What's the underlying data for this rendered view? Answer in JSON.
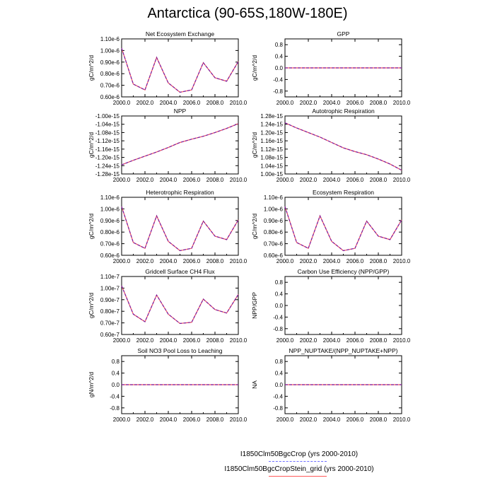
{
  "title": "Antarctica (90-65S,180W-180E)",
  "legend": [
    {
      "label": "I1850Clm50BgcCrop (yrs 2000-2010)",
      "color": "#6f6fff",
      "dash": true
    },
    {
      "label": "I1850Clm50BgcCropStein_grid (yrs 2000-2010)",
      "color": "#ff5a5a",
      "dash": false
    }
  ],
  "colors": {
    "series_overlap": "#7a1fa2",
    "zero_line": "#7a1fa2"
  },
  "chart_data": [
    {
      "type": "line",
      "title": "Net Ecosystem Exchange",
      "ylabel": "gC/m^2/d",
      "x": [
        2000,
        2001,
        2002,
        2003,
        2004,
        2005,
        2006,
        2007,
        2008,
        2009,
        2010
      ],
      "series": [
        {
          "values": [
            1.02e-06,
            7.1e-07,
            6.6e-07,
            9.4e-07,
            7.2e-07,
            6.4e-07,
            6.6e-07,
            8.95e-07,
            7.65e-07,
            7.35e-07,
            9.05e-07
          ]
        }
      ],
      "xlim": [
        2000,
        2010
      ],
      "ylim": [
        6e-07,
        1.1e-06
      ],
      "xticks": [
        2000,
        2002,
        2004,
        2006,
        2008,
        2010
      ],
      "xtick_labels": [
        "2000.0",
        "2002.0",
        "2004.0",
        "2006.0",
        "2008.0",
        "2010.0"
      ],
      "yticks": [
        6e-07,
        7e-07,
        8e-07,
        9e-07,
        1e-06,
        1.1e-06
      ],
      "ytick_labels": [
        "0.60e-6",
        "0.70e-6",
        "0.80e-6",
        "0.90e-6",
        "1.00e-6",
        "1.10e-6"
      ]
    },
    {
      "type": "line",
      "title": "GPP",
      "ylabel": "gC/m^2/d",
      "x": [
        2000,
        2001,
        2002,
        2003,
        2004,
        2005,
        2006,
        2007,
        2008,
        2009,
        2010
      ],
      "series": [
        {
          "values": [
            0,
            0,
            0,
            0,
            0,
            0,
            0,
            0,
            0,
            0,
            0
          ]
        }
      ],
      "xlim": [
        2000,
        2010
      ],
      "ylim": [
        -1,
        1
      ],
      "xticks": [
        2000,
        2002,
        2004,
        2006,
        2008,
        2010
      ],
      "xtick_labels": [
        "2000.0",
        "2002.0",
        "2004.0",
        "2006.0",
        "2008.0",
        "2010.0"
      ],
      "yticks": [
        -0.8,
        -0.4,
        0,
        0.4,
        0.8
      ],
      "ytick_labels": [
        "-0.8",
        "-0.4",
        "0.0",
        "0.4",
        "0.8"
      ]
    },
    {
      "type": "line",
      "title": "NPP",
      "ylabel": "gC/m^2/d",
      "x": [
        2000,
        2001,
        2002,
        2003,
        2004,
        2005,
        2006,
        2007,
        2008,
        2009,
        2010
      ],
      "series": [
        {
          "values": [
            -1.236e-15,
            -1.214e-15,
            -1.194e-15,
            -1.174e-15,
            -1.152e-15,
            -1.128e-15,
            -1.112e-15,
            -1.098e-15,
            -1.08e-15,
            -1.06e-15,
            -1.037e-15
          ]
        }
      ],
      "xlim": [
        2000,
        2010
      ],
      "ylim": [
        -1.28e-15,
        -1e-15
      ],
      "xticks": [
        2000,
        2002,
        2004,
        2006,
        2008,
        2010
      ],
      "xtick_labels": [
        "2000.0",
        "2002.0",
        "2004.0",
        "2006.0",
        "2008.0",
        "2010.0"
      ],
      "yticks": [
        -1.28e-15,
        -1.24e-15,
        -1.2e-15,
        -1.16e-15,
        -1.12e-15,
        -1.08e-15,
        -1.04e-15,
        -1e-15
      ],
      "ytick_labels": [
        "-1.28e-15",
        "-1.24e-15",
        "-1.20e-15",
        "-1.16e-15",
        "-1.12e-15",
        "-1.08e-15",
        "-1.04e-15",
        "-1.00e-15"
      ]
    },
    {
      "type": "line",
      "title": "Autotrophic Respiration",
      "ylabel": "gC/m^2/d",
      "x": [
        2000,
        2001,
        2002,
        2003,
        2004,
        2005,
        2006,
        2007,
        2008,
        2009,
        2010
      ],
      "series": [
        {
          "values": [
            1.247e-15,
            1.222e-15,
            1.2e-15,
            1.178e-15,
            1.152e-15,
            1.126e-15,
            1.108e-15,
            1.093e-15,
            1.072e-15,
            1.048e-15,
            1.018e-15
          ]
        }
      ],
      "xlim": [
        2000,
        2010
      ],
      "ylim": [
        1e-15,
        1.28e-15
      ],
      "xticks": [
        2000,
        2002,
        2004,
        2006,
        2008,
        2010
      ],
      "xtick_labels": [
        "2000.0",
        "2002.0",
        "2004.0",
        "2006.0",
        "2008.0",
        "2010.0"
      ],
      "yticks": [
        1e-15,
        1.04e-15,
        1.08e-15,
        1.12e-15,
        1.16e-15,
        1.2e-15,
        1.24e-15,
        1.28e-15
      ],
      "ytick_labels": [
        "1.00e-15",
        "1.04e-15",
        "1.08e-15",
        "1.12e-15",
        "1.16e-15",
        "1.20e-15",
        "1.24e-15",
        "1.28e-15"
      ]
    },
    {
      "type": "line",
      "title": "Heterotrophic Respiration",
      "ylabel": "gC/m^2/d",
      "x": [
        2000,
        2001,
        2002,
        2003,
        2004,
        2005,
        2006,
        2007,
        2008,
        2009,
        2010
      ],
      "series": [
        {
          "values": [
            1.02e-06,
            7.1e-07,
            6.6e-07,
            9.4e-07,
            7.2e-07,
            6.4e-07,
            6.6e-07,
            8.95e-07,
            7.65e-07,
            7.35e-07,
            9.05e-07
          ]
        }
      ],
      "xlim": [
        2000,
        2010
      ],
      "ylim": [
        6e-07,
        1.1e-06
      ],
      "xticks": [
        2000,
        2002,
        2004,
        2006,
        2008,
        2010
      ],
      "xtick_labels": [
        "2000.0",
        "2002.0",
        "2004.0",
        "2006.0",
        "2008.0",
        "2010.0"
      ],
      "yticks": [
        6e-07,
        7e-07,
        8e-07,
        9e-07,
        1e-06,
        1.1e-06
      ],
      "ytick_labels": [
        "0.60e-6",
        "0.70e-6",
        "0.80e-6",
        "0.90e-6",
        "1.00e-6",
        "1.10e-6"
      ]
    },
    {
      "type": "line",
      "title": "Ecosystem Respiration",
      "ylabel": "gC/m^2/d",
      "x": [
        2000,
        2001,
        2002,
        2003,
        2004,
        2005,
        2006,
        2007,
        2008,
        2009,
        2010
      ],
      "series": [
        {
          "values": [
            1.02e-06,
            7.1e-07,
            6.6e-07,
            9.4e-07,
            7.2e-07,
            6.4e-07,
            6.6e-07,
            8.95e-07,
            7.65e-07,
            7.35e-07,
            9.05e-07
          ]
        }
      ],
      "xlim": [
        2000,
        2010
      ],
      "ylim": [
        6e-07,
        1.1e-06
      ],
      "xticks": [
        2000,
        2002,
        2004,
        2006,
        2008,
        2010
      ],
      "xtick_labels": [
        "2000.0",
        "2002.0",
        "2004.0",
        "2006.0",
        "2008.0",
        "2010.0"
      ],
      "yticks": [
        6e-07,
        7e-07,
        8e-07,
        9e-07,
        1e-06,
        1.1e-06
      ],
      "ytick_labels": [
        "0.60e-6",
        "0.70e-6",
        "0.80e-6",
        "0.90e-6",
        "1.00e-6",
        "1.10e-6"
      ]
    },
    {
      "type": "line",
      "title": "Gridcell Surface CH4 Flux",
      "ylabel": "gC/m^2/d",
      "x": [
        2000,
        2001,
        2002,
        2003,
        2004,
        2005,
        2006,
        2007,
        2008,
        2009,
        2010
      ],
      "series": [
        {
          "values": [
            1.02e-07,
            7.75e-08,
            7.1e-08,
            9.4e-08,
            7.75e-08,
            6.95e-08,
            7.05e-08,
            9.05e-08,
            8.15e-08,
            7.85e-08,
            9.45e-08
          ]
        }
      ],
      "xlim": [
        2000,
        2010
      ],
      "ylim": [
        6e-08,
        1.1e-07
      ],
      "xticks": [
        2000,
        2002,
        2004,
        2006,
        2008,
        2010
      ],
      "xtick_labels": [
        "2000.0",
        "2002.0",
        "2004.0",
        "2006.0",
        "2008.0",
        "2010.0"
      ],
      "yticks": [
        6e-08,
        7e-08,
        8e-08,
        9e-08,
        1e-07,
        1.1e-07
      ],
      "ytick_labels": [
        "0.60e-7",
        "0.70e-7",
        "0.80e-7",
        "0.90e-7",
        "1.00e-7",
        "1.10e-7"
      ]
    },
    {
      "type": "line",
      "title": "Carbon Use Efficiency (NPP/GPP)",
      "ylabel": "NPP/GPP",
      "x": [],
      "series": [],
      "xlim": [
        2000,
        2010
      ],
      "ylim": [
        -1,
        1
      ],
      "xticks": [
        2000,
        2002,
        2004,
        2006,
        2008,
        2010
      ],
      "xtick_labels": [
        "2000.0",
        "2002.0",
        "2004.0",
        "2006.0",
        "2008.0",
        "2010.0"
      ],
      "yticks": [
        -0.8,
        -0.4,
        0,
        0.4,
        0.8
      ],
      "ytick_labels": [
        "-0.8",
        "-0.4",
        "0.0",
        "0.4",
        "0.8"
      ]
    },
    {
      "type": "line",
      "title": "Soil NO3 Pool Loss to Leaching",
      "ylabel": "gN/m^2/d",
      "x": [
        2000,
        2001,
        2002,
        2003,
        2004,
        2005,
        2006,
        2007,
        2008,
        2009,
        2010
      ],
      "series": [
        {
          "values": [
            0,
            0,
            0,
            0,
            0,
            0,
            0,
            0,
            0,
            0,
            0
          ]
        }
      ],
      "xlim": [
        2000,
        2010
      ],
      "ylim": [
        -1,
        1
      ],
      "xticks": [
        2000,
        2002,
        2004,
        2006,
        2008,
        2010
      ],
      "xtick_labels": [
        "2000.0",
        "2002.0",
        "2004.0",
        "2006.0",
        "2008.0",
        "2010.0"
      ],
      "yticks": [
        -0.8,
        -0.4,
        0,
        0.4,
        0.8
      ],
      "ytick_labels": [
        "-0.8",
        "-0.4",
        "0.0",
        "0.4",
        "0.8"
      ]
    },
    {
      "type": "line",
      "title": "NPP_NUPTAKE/(NPP_NUPTAKE+NPP)",
      "ylabel": "NA",
      "x": [
        2000,
        2001,
        2002,
        2003,
        2004,
        2005,
        2006,
        2007,
        2008,
        2009,
        2010
      ],
      "series": [
        {
          "values": [
            0,
            0,
            0,
            0,
            0,
            0,
            0,
            0,
            0,
            0,
            0
          ]
        }
      ],
      "xlim": [
        2000,
        2010
      ],
      "ylim": [
        -1,
        1
      ],
      "xticks": [
        2000,
        2002,
        2004,
        2006,
        2008,
        2010
      ],
      "xtick_labels": [
        "2000.0",
        "2002.0",
        "2004.0",
        "2006.0",
        "2008.0",
        "2010.0"
      ],
      "yticks": [
        -0.8,
        -0.4,
        0,
        0.4,
        0.8
      ],
      "ytick_labels": [
        "-0.8",
        "-0.4",
        "0.0",
        "0.4",
        "0.8"
      ]
    }
  ]
}
